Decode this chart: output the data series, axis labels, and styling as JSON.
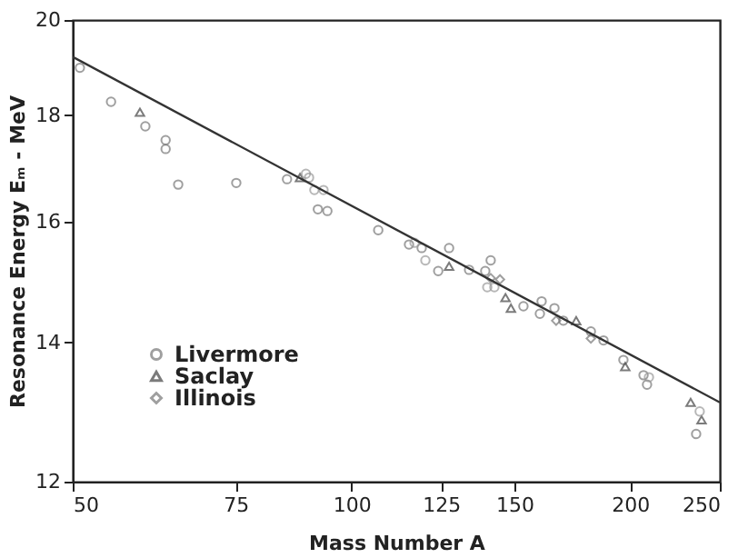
{
  "chart_data": {
    "type": "scatter",
    "xlabel": "Mass Number A",
    "ylabel": "Resonance Energy Eₘ - MeV",
    "log": "xy",
    "xlim": [
      50,
      250
    ],
    "ylim": [
      12,
      20
    ],
    "xticks": [
      50,
      75,
      100,
      125,
      150,
      200,
      250
    ],
    "yticks": [
      12,
      14,
      16,
      18,
      20
    ],
    "grid": false,
    "legend": "bottom left",
    "series": [
      {
        "name": "Livermore",
        "marker": "circle",
        "color": "#777777",
        "x": [
          50.9,
          55.0,
          59.9,
          63.0,
          63.0,
          65.0,
          75.1,
          85.2,
          92.0,
          94.2,
          106.9,
          115.4,
          119.1,
          124.1,
          127.5,
          134.0,
          139.5,
          141.4,
          153.4,
          160.5,
          159.8,
          165.7,
          169.4,
          181.4,
          187.2,
          196.7,
          206.8,
          208.6,
          235.7
        ],
        "values": [
          18.97,
          18.27,
          17.78,
          17.51,
          17.34,
          16.67,
          16.7,
          16.77,
          16.22,
          16.19,
          15.85,
          15.6,
          15.54,
          15.15,
          15.54,
          15.17,
          15.15,
          15.33,
          14.57,
          14.65,
          14.45,
          14.54,
          14.34,
          14.17,
          14.03,
          13.73,
          13.5,
          13.36,
          12.65
        ]
      },
      {
        "name": "Saclay",
        "marker": "triangle",
        "color": "#444444",
        "x": [
          59.1,
          88.0,
          127.5,
          146.7,
          148.7,
          174.9,
          197.6,
          232.5,
          238.9
        ],
        "values": [
          18.06,
          16.8,
          15.23,
          14.71,
          14.54,
          14.34,
          13.63,
          13.1,
          12.85
        ]
      },
      {
        "marker": "circle",
        "color": "#999999",
        "x": [
          89.3,
          90.0,
          91.2,
          93.3,
          117.0,
          120.2,
          140.2,
          142.7,
          209.6,
          237.8
        ],
        "values": [
          16.87,
          16.8,
          16.57,
          16.57,
          15.63,
          15.33,
          14.88,
          14.88,
          13.47,
          12.97
        ]
      },
      {
        "name": "Illinois",
        "marker": "diamond",
        "color": "#777777",
        "x": [
          141.4,
          144.7,
          166.4,
          181.4
        ],
        "values": [
          15.03,
          15.01,
          14.34,
          14.06
        ]
      },
      {
        "type": "line",
        "color": "#333333",
        "x": [
          50,
          250
        ],
        "values": [
          19.2,
          13.1
        ]
      }
    ]
  }
}
